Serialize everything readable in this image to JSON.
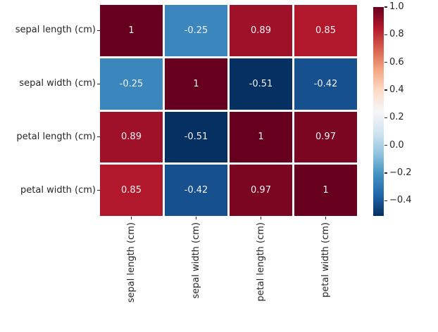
{
  "chart_data": {
    "type": "heatmap",
    "title": "",
    "xlabel": "",
    "ylabel": "",
    "categories": [
      "sepal length (cm)",
      "sepal width (cm)",
      "petal length (cm)",
      "petal width (cm)"
    ],
    "matrix": [
      [
        1,
        -0.25,
        0.89,
        0.85
      ],
      [
        -0.25,
        1,
        -0.51,
        -0.42
      ],
      [
        0.89,
        -0.51,
        1,
        0.97
      ],
      [
        0.85,
        -0.42,
        0.97,
        1
      ]
    ],
    "cell_labels": [
      [
        "1",
        "-0.25",
        "0.89",
        "0.85"
      ],
      [
        "-0.25",
        "1",
        "-0.51",
        "-0.42"
      ],
      [
        "0.89",
        "-0.51",
        "1",
        "0.97"
      ],
      [
        "0.85",
        "-0.42",
        "0.97",
        "1"
      ]
    ],
    "cell_colors": [
      [
        "#67001f",
        "#3a86bd",
        "#9e1128",
        "#b2182b"
      ],
      [
        "#3a86bd",
        "#67001f",
        "#053061",
        "#16508e"
      ],
      [
        "#9e1128",
        "#053061",
        "#67001f",
        "#7a0622"
      ],
      [
        "#b2182b",
        "#16508e",
        "#7a0622",
        "#67001f"
      ]
    ],
    "annotation_text_color": "#f2f2f6",
    "grid_line_color": "#ffffff",
    "tick_color": "#262626",
    "legend_position": "right",
    "grid": false,
    "colormap": {
      "name": "RdBu_r",
      "stops": [
        "#053061",
        "#2166ac",
        "#4393c3",
        "#92c5de",
        "#d1e5f0",
        "#f7f7f7",
        "#fddbc7",
        "#f4a582",
        "#d6604d",
        "#b2182b",
        "#67001f"
      ]
    },
    "colorbar": {
      "vmin": -0.51,
      "vmax": 1.0,
      "ticks": [
        {
          "label": "1.0",
          "value": 1.0
        },
        {
          "label": "0.8",
          "value": 0.8
        },
        {
          "label": "0.6",
          "value": 0.6
        },
        {
          "label": "0.4",
          "value": 0.4
        },
        {
          "label": "0.2",
          "value": 0.2
        },
        {
          "label": "0.0",
          "value": 0.0
        },
        {
          "label": "−0.2",
          "value": -0.2
        },
        {
          "label": "−0.4",
          "value": -0.4
        }
      ]
    }
  }
}
